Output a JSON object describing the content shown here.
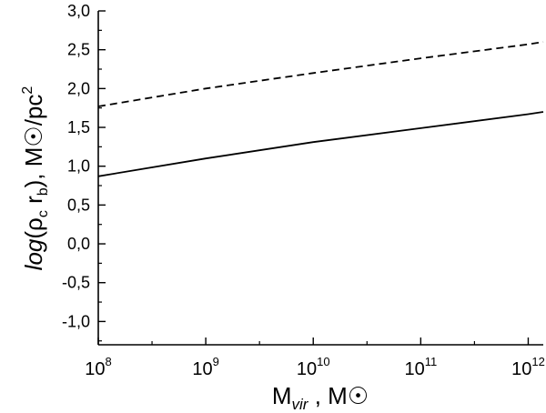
{
  "chart_data": {
    "type": "line",
    "xscale": "log",
    "xlim_exp": [
      8,
      12.14
    ],
    "ylim": [
      -1.3,
      3.0
    ],
    "yticks": [
      -1.0,
      -0.5,
      0.0,
      0.5,
      1.0,
      1.5,
      2.0,
      2.5,
      3.0
    ],
    "ytick_labels": [
      "-1,0",
      "-0,5",
      "0,0",
      "0,5",
      "1,0",
      "1,5",
      "2,0",
      "2,5",
      "3,0"
    ],
    "xticks": [
      {
        "exp": 8,
        "base": "10",
        "sup": "8"
      },
      {
        "exp": 9,
        "base": "10",
        "sup": "9"
      },
      {
        "exp": 10,
        "base": "10",
        "sup": "10"
      },
      {
        "exp": 11,
        "base": "10",
        "sup": "11"
      },
      {
        "exp": 12,
        "base": "10",
        "sup": "12"
      }
    ],
    "xlabel": {
      "main": "M",
      "sub": "vir",
      "tail": " , M☉"
    },
    "ylabel": {
      "pre": "log",
      "paren_open": "(ρ",
      "sub1": "c",
      "mid": " r",
      "sub2": "b",
      "tail": "), M☉/pc",
      "sup": "2"
    },
    "grid": false,
    "series": [
      {
        "style": "solid",
        "x_exp": [
          8,
          9,
          10,
          11,
          12,
          12.14
        ],
        "y": [
          0.87,
          1.1,
          1.31,
          1.49,
          1.67,
          1.7
        ]
      },
      {
        "style": "dashed",
        "x_exp": [
          8,
          9,
          10,
          11,
          12,
          12.14
        ],
        "y": [
          1.77,
          2.0,
          2.2,
          2.39,
          2.57,
          2.6
        ]
      }
    ]
  }
}
